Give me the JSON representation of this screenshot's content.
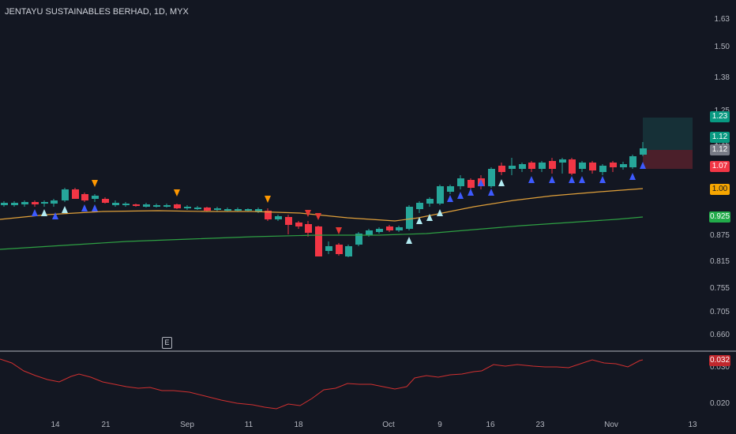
{
  "header": {
    "title": "JENTAYU SUSTAINABLES BERHAD, 1D, MYX"
  },
  "earnings_marker": {
    "label": "E"
  },
  "price_axis": {
    "ticks": [
      "1.63",
      "1.50",
      "1.38",
      "1.25",
      "1.12",
      "1.00",
      "0.875",
      "0.815",
      "0.755",
      "0.705",
      "0.660"
    ]
  },
  "indicator_axis": {
    "ticks": [
      "0.030",
      "0.020"
    ]
  },
  "time_axis": {
    "ticks": [
      "14",
      "21",
      "Sep",
      "11",
      "18",
      "Oct",
      "9",
      "16",
      "23",
      "Nov",
      "13"
    ]
  },
  "price_tags": {
    "target": {
      "value": "1.23",
      "color": "#089981"
    },
    "last": {
      "value": "1.12",
      "color": "#089981"
    },
    "prev_close": {
      "value": "1.12",
      "color": "#787b86"
    },
    "stop": {
      "value": "1.07",
      "color": "#f23645"
    },
    "ma_fast": {
      "value": "1.00",
      "color": "#f7a600"
    },
    "ma_slow": {
      "value": "0.925",
      "color": "#22ab4a"
    },
    "indicator": {
      "value": "0.032",
      "color": "#c0272d"
    }
  },
  "colors": {
    "up": "#26a69a",
    "down": "#f23645",
    "ma_fast": "#e0a03a",
    "ma_slow": "#2ea043",
    "indicator_line": "#d03030",
    "buy_triangle": "#3d5afe",
    "buy_triangle_light": "#b2ebf2",
    "sell_triangle": "#ff9800",
    "sell_triangle_red": "#e53935"
  }
}
